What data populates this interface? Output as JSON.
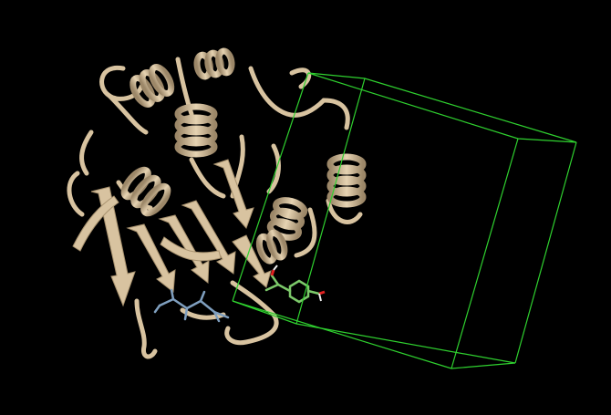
{
  "viewer": {
    "background_color": "#000000",
    "ribbon_color": "#d8c3a0",
    "ribbon_shade_color": "#a8926f",
    "ligand_color": "#7cc96a",
    "ligand_oxygen_color": "#e02020",
    "ligand_hydrogen_color": "#f0f0f0",
    "secondary_ligand_color": "#7f9fbf",
    "grid_box_color": "#2fd12f"
  }
}
